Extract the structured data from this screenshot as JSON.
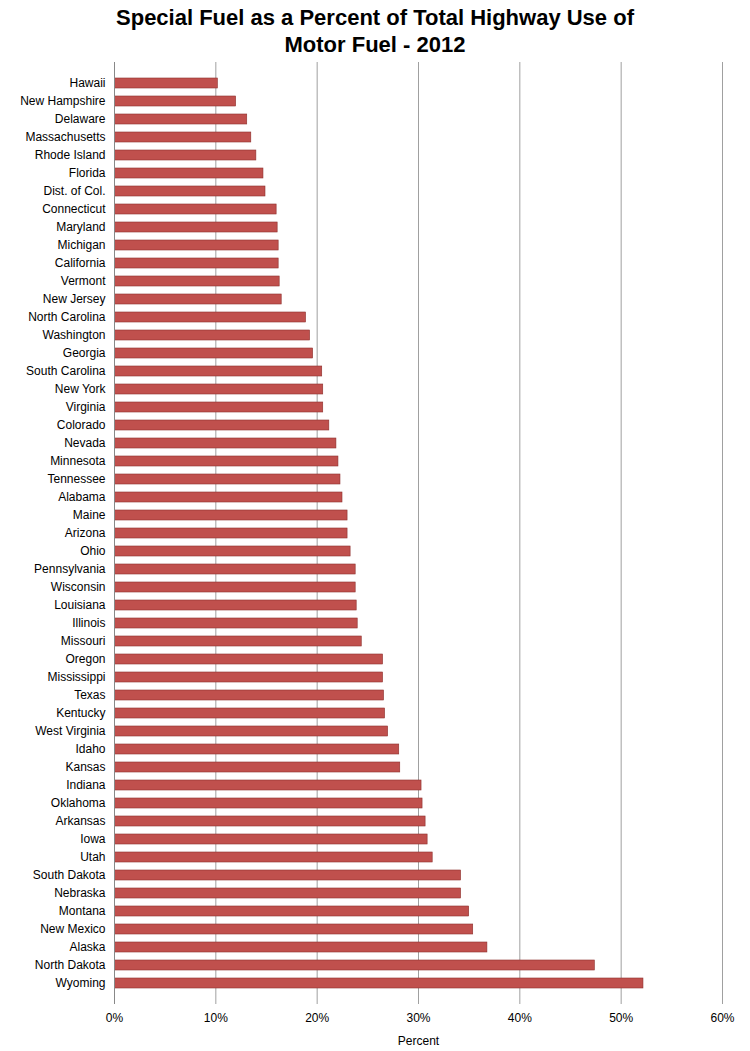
{
  "chart_data": {
    "type": "bar",
    "orientation": "horizontal",
    "title": "Special Fuel as a Percent of Total Highway Use of Motor Fuel - 2012",
    "xlabel": "Percent",
    "categories": [
      "Hawaii",
      "New Hampshire",
      "Delaware",
      "Massachusetts",
      "Rhode Island",
      "Florida",
      "Dist. of Col.",
      "Connecticut",
      "Maryland",
      "Michigan",
      "California",
      "Vermont",
      "New Jersey",
      "North Carolina",
      "Washington",
      "Georgia",
      "South Carolina",
      "New York",
      "Virginia",
      "Colorado",
      "Nevada",
      "Minnesota",
      "Tennessee",
      "Alabama",
      "Maine",
      "Arizona",
      "Ohio",
      "Pennsylvania",
      "Wisconsin",
      "Louisiana",
      "Illinois",
      "Missouri",
      "Oregon",
      "Mississippi",
      "Texas",
      "Kentucky",
      "West Virginia",
      "Idaho",
      "Kansas",
      "Indiana",
      "Oklahoma",
      "Arkansas",
      "Iowa",
      "Utah",
      "South Dakota",
      "Nebraska",
      "Montana",
      "New Mexico",
      "Alaska",
      "North Dakota",
      "Wyoming"
    ],
    "values": [
      10.2,
      12.0,
      13.1,
      13.5,
      14.0,
      14.7,
      14.9,
      16.0,
      16.1,
      16.2,
      16.2,
      16.3,
      16.5,
      18.9,
      19.3,
      19.6,
      20.5,
      20.6,
      20.6,
      21.2,
      21.9,
      22.1,
      22.3,
      22.5,
      23.0,
      23.0,
      23.3,
      23.8,
      23.8,
      23.9,
      24.0,
      24.4,
      26.5,
      26.5,
      26.6,
      26.7,
      27.0,
      28.1,
      28.2,
      30.3,
      30.4,
      30.7,
      30.9,
      31.4,
      34.2,
      34.2,
      35.0,
      35.4,
      36.8,
      47.4,
      52.2
    ],
    "color": "#c0504d",
    "xlim": [
      0,
      60
    ],
    "xticks": [
      {
        "value": 0,
        "label": "0%"
      },
      {
        "value": 10,
        "label": "10%"
      },
      {
        "value": 20,
        "label": "20%"
      },
      {
        "value": 30,
        "label": "30%"
      },
      {
        "value": 40,
        "label": "40%"
      },
      {
        "value": 50,
        "label": "50%"
      },
      {
        "value": 60,
        "label": "60%"
      }
    ],
    "grid": true
  }
}
